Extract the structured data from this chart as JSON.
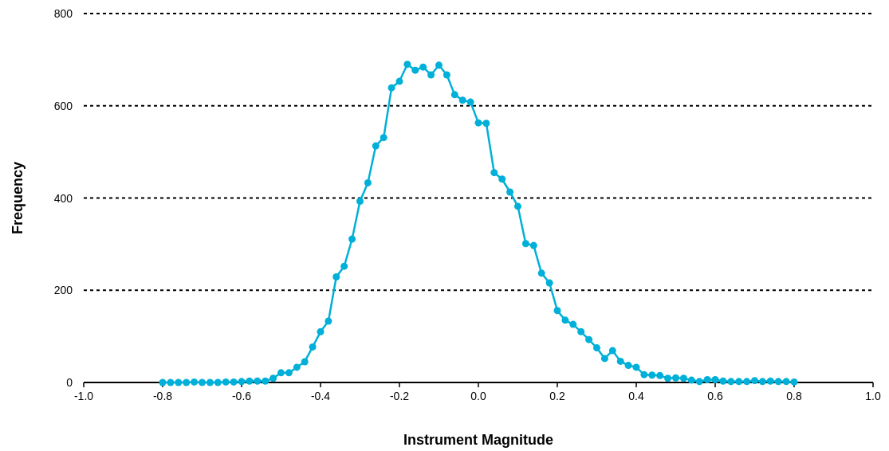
{
  "chart_data": {
    "type": "line",
    "xlabel": "Instrument Magnitude",
    "ylabel": "Frequency",
    "x": [
      -0.8,
      -0.78,
      -0.76,
      -0.74,
      -0.72,
      -0.7,
      -0.68,
      -0.66,
      -0.64,
      -0.62,
      -0.6,
      -0.58,
      -0.56,
      -0.54,
      -0.52,
      -0.5,
      -0.48,
      -0.46,
      -0.44,
      -0.42,
      -0.4,
      -0.38,
      -0.36,
      -0.34,
      -0.32,
      -0.3,
      -0.28,
      -0.26,
      -0.24,
      -0.22,
      -0.2,
      -0.18,
      -0.16,
      -0.14,
      -0.12,
      -0.1,
      -0.08,
      -0.06,
      -0.04,
      -0.02,
      0,
      0.02,
      0.04,
      0.06,
      0.08,
      0.1,
      0.12,
      0.14,
      0.16,
      0.18,
      0.2,
      0.22,
      0.24,
      0.26,
      0.28,
      0.3,
      0.32,
      0.34,
      0.36,
      0.38,
      0.4,
      0.42,
      0.44,
      0.46,
      0.48,
      0.5,
      0.52,
      0.54,
      0.56,
      0.58,
      0.6,
      0.62,
      0.64,
      0.66,
      0.68,
      0.7,
      0.72,
      0.74,
      0.76,
      0.78,
      0.8
    ],
    "series": [
      {
        "color": "#00b0d8",
        "values": [
          0,
          0,
          0,
          0,
          1,
          0,
          0,
          0,
          1,
          1,
          2,
          3,
          3,
          3,
          9,
          21,
          21,
          33,
          45,
          77,
          110,
          133,
          229,
          252,
          311,
          393,
          433,
          513,
          531,
          639,
          653,
          690,
          677,
          684,
          667,
          688,
          667,
          624,
          612,
          608,
          563,
          562,
          455,
          441,
          413,
          382,
          301,
          297,
          237,
          216,
          156,
          135,
          126,
          110,
          93,
          75,
          52,
          69,
          46,
          37,
          33,
          17,
          16,
          15,
          9,
          10,
          9,
          5,
          2,
          6,
          6,
          3,
          2,
          2,
          2,
          4,
          2,
          3,
          2,
          2,
          1
        ]
      }
    ],
    "xlim": [
      -1,
      1
    ],
    "xticks": [
      {
        "value": -1,
        "label": "-1.0"
      },
      {
        "value": -0.8,
        "label": "-0.8"
      },
      {
        "value": -0.6,
        "label": "-0.6"
      },
      {
        "value": -0.4,
        "label": "-0.4"
      },
      {
        "value": -0.2,
        "label": "-0.2"
      },
      {
        "value": 0,
        "label": "0.0"
      },
      {
        "value": 0.2,
        "label": "0.2"
      },
      {
        "value": 0.4,
        "label": "0.4"
      },
      {
        "value": 0.6,
        "label": "0.6"
      },
      {
        "value": 0.8,
        "label": "0.8"
      },
      {
        "value": 1,
        "label": "1.0"
      }
    ],
    "ylim": [
      0,
      800
    ],
    "yticks": [
      0,
      200,
      400,
      600,
      800
    ],
    "grid": "y",
    "marker": "circle",
    "line_style": "solid"
  }
}
